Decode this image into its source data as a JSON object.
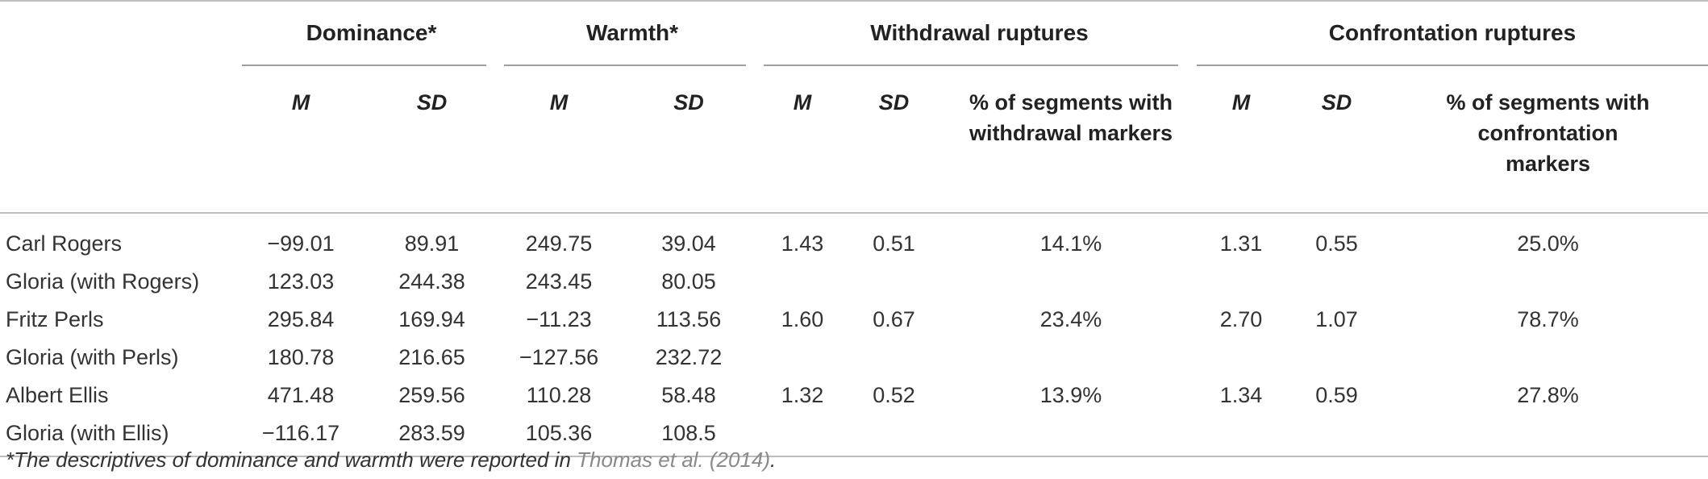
{
  "groups": {
    "dominance": "Dominance*",
    "warmth": "Warmth*",
    "withdrawal": "Withdrawal ruptures",
    "confrontation": "Confrontation ruptures"
  },
  "subheads": {
    "m": "M",
    "sd": "SD",
    "withdrawal_pct_line1": "% of segments with",
    "withdrawal_pct_line2": "withdrawal markers",
    "confrontation_pct_line1": "% of segments with",
    "confrontation_pct_line2": "confrontation",
    "confrontation_pct_line3": "markers"
  },
  "rows": [
    {
      "label": "Carl Rogers",
      "dom_m": "−99.01",
      "dom_sd": "89.91",
      "warm_m": "249.75",
      "warm_sd": "39.04",
      "wd_m": "1.43",
      "wd_sd": "0.51",
      "wd_pct": "14.1%",
      "cf_m": "1.31",
      "cf_sd": "0.55",
      "cf_pct": "25.0%"
    },
    {
      "label": "Gloria (with Rogers)",
      "dom_m": "123.03",
      "dom_sd": "244.38",
      "warm_m": "243.45",
      "warm_sd": "80.05",
      "wd_m": "",
      "wd_sd": "",
      "wd_pct": "",
      "cf_m": "",
      "cf_sd": "",
      "cf_pct": ""
    },
    {
      "label": "Fritz Perls",
      "dom_m": "295.84",
      "dom_sd": "169.94",
      "warm_m": "−11.23",
      "warm_sd": "113.56",
      "wd_m": "1.60",
      "wd_sd": "0.67",
      "wd_pct": "23.4%",
      "cf_m": "2.70",
      "cf_sd": "1.07",
      "cf_pct": "78.7%"
    },
    {
      "label": "Gloria (with Perls)",
      "dom_m": "180.78",
      "dom_sd": "216.65",
      "warm_m": "−127.56",
      "warm_sd": "232.72",
      "wd_m": "",
      "wd_sd": "",
      "wd_pct": "",
      "cf_m": "",
      "cf_sd": "",
      "cf_pct": ""
    },
    {
      "label": "Albert Ellis",
      "dom_m": "471.48",
      "dom_sd": "259.56",
      "warm_m": "110.28",
      "warm_sd": "58.48",
      "wd_m": "1.32",
      "wd_sd": "0.52",
      "wd_pct": "13.9%",
      "cf_m": "1.34",
      "cf_sd": "0.59",
      "cf_pct": "27.8%"
    },
    {
      "label": "Gloria (with Ellis)",
      "dom_m": "−116.17",
      "dom_sd": "283.59",
      "warm_m": "105.36",
      "warm_sd": "108.5",
      "wd_m": "",
      "wd_sd": "",
      "wd_pct": "",
      "cf_m": "",
      "cf_sd": "",
      "cf_pct": ""
    }
  ],
  "footnote": {
    "text": "*The descriptives of dominance and warmth were reported in ",
    "citation": "Thomas et al. (2014)",
    "end": "."
  }
}
